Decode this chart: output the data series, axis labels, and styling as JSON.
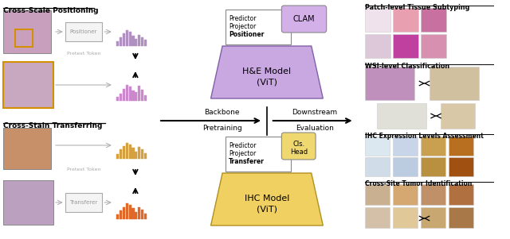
{
  "bg_color": "#ffffff",
  "he_model_color": "#c9a8e2",
  "ihc_model_color": "#f0d060",
  "clam_color": "#d4b0e8",
  "cls_color": "#f0d870",
  "positioner_hist_color": "#b090c0",
  "pretext_hist_color_top": "#cc88cc",
  "ihc_hist1_color": "#d4a040",
  "ihc_hist2_color": "#e06828",
  "section_title_top_left": "Cross-Scale Positioning",
  "section_title_bot_left": "Cross-Stain Transferring",
  "section_title_top_right": "Patch-level Tissue Subtyping",
  "section_title_wsi": "WSI-level Classification",
  "section_title_ihc": "IHC Expression Levels Assessment",
  "section_title_cross": "Cross-Site Tumor Identification",
  "backbone_label": "Backbone",
  "pretraining_label": "Pretraining",
  "downstream_label": "Downstream",
  "evaluation_label": "Evaluation",
  "he_box_lines": [
    "Predictor",
    "Projector",
    "Positioner"
  ],
  "ihc_box_lines": [
    "Predictor",
    "Projector",
    "Transferer"
  ],
  "clam_text": "CLAM",
  "cls_text_1": "Cls.",
  "cls_text_2": "Head",
  "he_model_line1": "H&E Model",
  "he_model_line2": "(ViT)",
  "ihc_model_line1": "IHC Model",
  "ihc_model_line2": "(ViT)",
  "positioner_label": "Positioner",
  "transferer_label": "Transferer",
  "pretext_token_label": "Pretext Token"
}
